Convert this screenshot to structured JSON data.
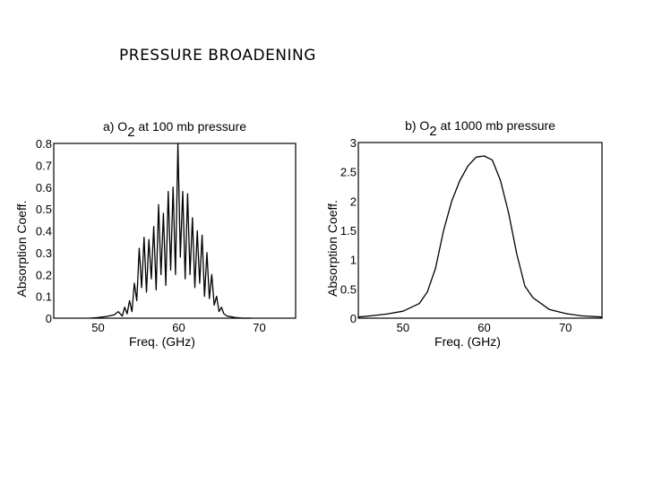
{
  "slide": {
    "title": "PRESSURE BROADENING"
  },
  "chart_data": [
    {
      "type": "line",
      "title_prefix": "a)",
      "title_species": "O",
      "title_subscript": "2",
      "title_suffix": "at 100 mb pressure",
      "xlabel": "Freq. (GHz)",
      "ylabel": "Absorption Coeff.",
      "xlim": [
        44.5,
        74.5
      ],
      "ylim": [
        0,
        0.8
      ],
      "xticks": [
        "50",
        "60",
        "70"
      ],
      "yticks": [
        "0",
        "0.1",
        "0.2",
        "0.3",
        "0.4",
        "0.5",
        "0.6",
        "0.7",
        "0.8"
      ],
      "series": [
        {
          "x": [
            49,
            50,
            51,
            52,
            52.5,
            53,
            53.3,
            53.6,
            53.9,
            54.2,
            54.5,
            54.8,
            55.1,
            55.4,
            55.7,
            56.0,
            56.3,
            56.6,
            56.9,
            57.2,
            57.5,
            57.8,
            58.1,
            58.4,
            58.7,
            59.0,
            59.3,
            59.6,
            59.9,
            60.2,
            60.5,
            60.8,
            61.1,
            61.4,
            61.7,
            62.0,
            62.3,
            62.6,
            62.9,
            63.2,
            63.5,
            63.8,
            64.1,
            64.4,
            64.7,
            65.0,
            65.3,
            65.6,
            66,
            67,
            68,
            69
          ],
          "y": [
            0.0,
            0.003,
            0.008,
            0.015,
            0.03,
            0.01,
            0.05,
            0.02,
            0.08,
            0.03,
            0.16,
            0.08,
            0.32,
            0.14,
            0.37,
            0.12,
            0.36,
            0.18,
            0.42,
            0.13,
            0.52,
            0.2,
            0.48,
            0.15,
            0.58,
            0.22,
            0.6,
            0.2,
            0.8,
            0.28,
            0.58,
            0.18,
            0.57,
            0.2,
            0.46,
            0.14,
            0.4,
            0.16,
            0.38,
            0.1,
            0.3,
            0.09,
            0.2,
            0.06,
            0.1,
            0.03,
            0.05,
            0.02,
            0.01,
            0.003,
            0.0,
            0.0
          ]
        }
      ]
    },
    {
      "type": "line",
      "title_prefix": "b)",
      "title_species": "O",
      "title_subscript": "2",
      "title_suffix": "at 1000 mb pressure",
      "xlabel": "Freq. (GHz)",
      "ylabel": "Absorption Coeff.",
      "xlim": [
        44.5,
        74.5
      ],
      "ylim": [
        0,
        3
      ],
      "xticks": [
        "50",
        "60",
        "70"
      ],
      "yticks": [
        "0",
        "0.5",
        "1",
        "1.5",
        "2",
        "2.5",
        "3"
      ],
      "series": [
        {
          "x": [
            44.5,
            46,
            48,
            50,
            52,
            53,
            54,
            55,
            56,
            57,
            58,
            59,
            60,
            61,
            62,
            63,
            64,
            65,
            66,
            68,
            70,
            72,
            74.5
          ],
          "y": [
            0.02,
            0.04,
            0.07,
            0.12,
            0.25,
            0.45,
            0.85,
            1.5,
            2.0,
            2.35,
            2.6,
            2.75,
            2.77,
            2.7,
            2.35,
            1.8,
            1.1,
            0.55,
            0.35,
            0.15,
            0.08,
            0.04,
            0.02
          ]
        }
      ]
    }
  ]
}
